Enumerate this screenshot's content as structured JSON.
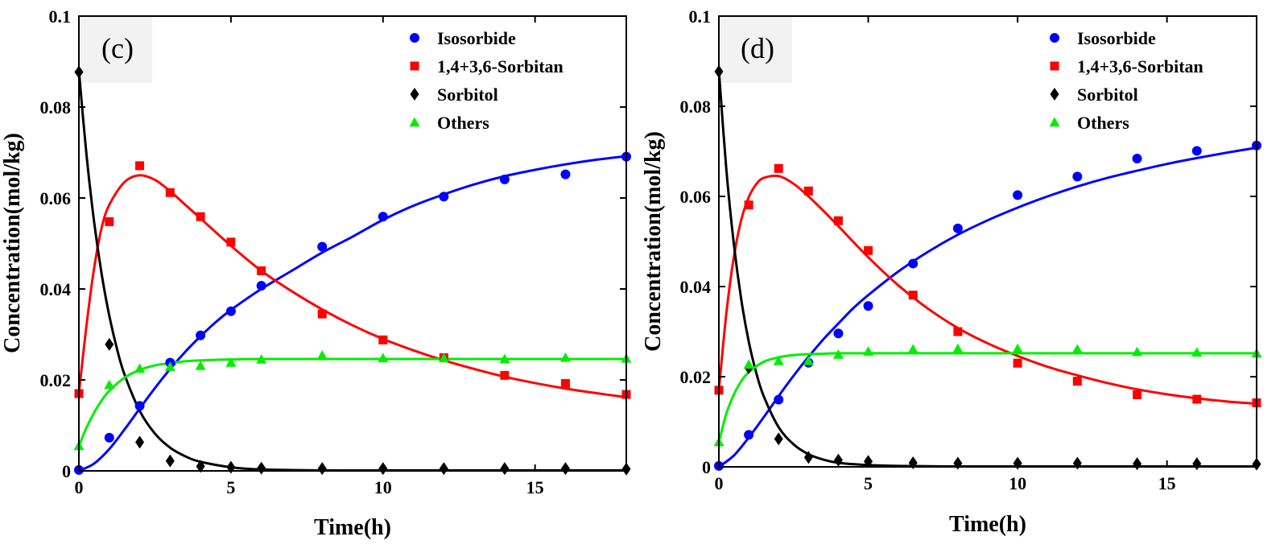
{
  "chart_data": [
    {
      "type": "scatter",
      "panel_label": "(c)",
      "xlabel": "Time(h)",
      "ylabel": "Concentration(mol/kg)",
      "xlim": [
        0,
        18
      ],
      "ylim": [
        0,
        0.1
      ],
      "x_ticks": [
        0,
        5,
        10,
        15
      ],
      "x_tick_labels": [
        "0",
        "5",
        "10",
        "15"
      ],
      "y_ticks": [
        0,
        0.02,
        0.04,
        0.06,
        0.08,
        0.1
      ],
      "y_tick_labels": [
        "0",
        "0.02",
        "0.04",
        "0.06",
        "0.08",
        "0.1"
      ],
      "legend_position": "top-right",
      "series": [
        {
          "name": "Isosorbide",
          "color": "#0000ff",
          "marker": "circle",
          "x": [
            0,
            1,
            2,
            3,
            4,
            5,
            6,
            8,
            10,
            12,
            14,
            16,
            18
          ],
          "y": [
            0.0002,
            0.0073,
            0.0143,
            0.0238,
            0.0298,
            0.0351,
            0.0407,
            0.0493,
            0.0559,
            0.0603,
            0.0641,
            0.0652,
            0.0691
          ],
          "fit_x": [
            0,
            0.5,
            1,
            1.5,
            2,
            2.5,
            3,
            3.5,
            4,
            4.5,
            5,
            6,
            7,
            8,
            9,
            10,
            11,
            12,
            13,
            14,
            15,
            16,
            17,
            18
          ],
          "fit_y": [
            0,
            0.0016,
            0.0048,
            0.0091,
            0.0137,
            0.0182,
            0.0224,
            0.0262,
            0.0296,
            0.0327,
            0.0354,
            0.04,
            0.044,
            0.048,
            0.0515,
            0.0552,
            0.0583,
            0.0608,
            0.063,
            0.0648,
            0.0662,
            0.0674,
            0.0684,
            0.0692
          ]
        },
        {
          "name": "1,4+3,6-Sorbitan",
          "color": "#ff0000",
          "marker": "square",
          "x": [
            0,
            1,
            2,
            3,
            4,
            5,
            6,
            8,
            10,
            12,
            14,
            16,
            18
          ],
          "y": [
            0.017,
            0.0548,
            0.0671,
            0.0612,
            0.0559,
            0.0503,
            0.044,
            0.0345,
            0.0288,
            0.0249,
            0.021,
            0.0192,
            0.0168
          ],
          "fit_x": [
            0,
            0.25,
            0.5,
            0.75,
            1,
            1.5,
            2,
            2.5,
            3,
            3.5,
            4,
            5,
            6,
            7,
            8,
            9,
            10,
            11,
            12,
            13,
            14,
            15,
            16,
            17,
            18
          ],
          "fit_y": [
            0.017,
            0.032,
            0.0445,
            0.0535,
            0.0585,
            0.0635,
            0.065,
            0.064,
            0.0615,
            0.0585,
            0.0555,
            0.0495,
            0.044,
            0.0395,
            0.0355,
            0.032,
            0.029,
            0.0265,
            0.0243,
            0.0224,
            0.0207,
            0.0193,
            0.0181,
            0.0171,
            0.0162
          ]
        },
        {
          "name": "Sorbitol",
          "color": "#000000",
          "marker": "diamond",
          "x": [
            0,
            1,
            2,
            3,
            4,
            5,
            6,
            8,
            10,
            12,
            14,
            16,
            18
          ],
          "y": [
            0.0877,
            0.0278,
            0.0063,
            0.0022,
            0.001,
            0.0008,
            0.0006,
            0.0005,
            0.0005,
            0.0005,
            0.0005,
            0.0005,
            0.0004
          ],
          "fit_x": [
            0,
            0.25,
            0.5,
            0.75,
            1,
            1.25,
            1.5,
            2,
            2.5,
            3,
            3.5,
            4,
            5,
            6,
            8,
            10,
            12,
            14,
            16,
            18
          ],
          "fit_y": [
            0.088,
            0.0695,
            0.0548,
            0.0432,
            0.0341,
            0.0269,
            0.0212,
            0.0132,
            0.0082,
            0.0051,
            0.0032,
            0.002,
            0.0008,
            0.0003,
            0.0001,
            0.0001,
            0.0001,
            0.0001,
            0.0001,
            0.0001
          ]
        },
        {
          "name": "Others",
          "color": "#00ee00",
          "marker": "triangle",
          "x": [
            0,
            1,
            2,
            3,
            4,
            5,
            6,
            8,
            10,
            12,
            14,
            16,
            18
          ],
          "y": [
            0.0055,
            0.0189,
            0.0225,
            0.0229,
            0.0231,
            0.0238,
            0.0245,
            0.0254,
            0.0248,
            0.0248,
            0.0246,
            0.0249,
            0.0247
          ],
          "fit_x": [
            0,
            0.25,
            0.5,
            0.75,
            1,
            1.5,
            2,
            2.5,
            3,
            3.5,
            4,
            5,
            6,
            8,
            10,
            12,
            14,
            16,
            18
          ],
          "fit_y": [
            0.0055,
            0.0095,
            0.0128,
            0.0155,
            0.0176,
            0.0205,
            0.0222,
            0.0232,
            0.0237,
            0.0241,
            0.0243,
            0.0245,
            0.0246,
            0.0246,
            0.0246,
            0.0246,
            0.0246,
            0.0246,
            0.0246
          ]
        }
      ]
    },
    {
      "type": "scatter",
      "panel_label": "(d)",
      "xlabel": "Time(h)",
      "ylabel": "Concentration(mol/kg)",
      "xlim": [
        0,
        18
      ],
      "ylim": [
        0,
        0.1
      ],
      "x_ticks": [
        0,
        5,
        10,
        15
      ],
      "x_tick_labels": [
        "0",
        "5",
        "10",
        "15"
      ],
      "y_ticks": [
        0,
        0.02,
        0.04,
        0.06,
        0.08,
        0.1
      ],
      "y_tick_labels": [
        "0",
        "0.02",
        "0.04",
        "0.06",
        "0.08",
        "0.1"
      ],
      "legend_position": "top-right",
      "series": [
        {
          "name": "Isosorbide",
          "color": "#0000ff",
          "marker": "circle",
          "x": [
            0,
            1,
            2,
            3,
            4,
            5,
            6.5,
            8,
            10,
            12,
            14,
            16,
            18
          ],
          "y": [
            0.0002,
            0.0071,
            0.0149,
            0.0231,
            0.0296,
            0.0357,
            0.0451,
            0.0529,
            0.0603,
            0.0644,
            0.0684,
            0.0701,
            0.0713
          ],
          "fit_x": [
            0,
            0.5,
            1,
            1.5,
            2,
            2.5,
            3,
            3.5,
            4,
            4.5,
            5,
            6,
            7,
            8,
            9,
            10,
            11,
            12,
            13,
            14,
            15,
            16,
            17,
            18
          ],
          "fit_y": [
            0,
            0.0025,
            0.0065,
            0.011,
            0.0157,
            0.0202,
            0.0244,
            0.0283,
            0.0318,
            0.0352,
            0.0381,
            0.0433,
            0.0477,
            0.0515,
            0.0547,
            0.0575,
            0.06,
            0.0622,
            0.0641,
            0.0657,
            0.0672,
            0.0685,
            0.0697,
            0.0708
          ]
        },
        {
          "name": "1,4+3,6-Sorbitan",
          "color": "#ff0000",
          "marker": "square",
          "x": [
            0,
            1,
            2,
            3,
            4,
            5,
            6.5,
            8,
            10,
            12,
            14,
            16,
            18
          ],
          "y": [
            0.017,
            0.0581,
            0.0662,
            0.0612,
            0.0546,
            0.048,
            0.0381,
            0.03,
            0.023,
            0.019,
            0.016,
            0.015,
            0.0142
          ],
          "fit_x": [
            0,
            0.25,
            0.5,
            0.75,
            1,
            1.25,
            1.5,
            2,
            2.5,
            3,
            3.5,
            4,
            5,
            6,
            7,
            8,
            9,
            10,
            11,
            12,
            13,
            14,
            15,
            16,
            17,
            18
          ],
          "fit_y": [
            0.017,
            0.034,
            0.0465,
            0.0548,
            0.0598,
            0.0627,
            0.0641,
            0.0645,
            0.0628,
            0.06,
            0.0568,
            0.0534,
            0.0465,
            0.0403,
            0.0351,
            0.0308,
            0.0274,
            0.0246,
            0.0222,
            0.0203,
            0.0186,
            0.0172,
            0.0161,
            0.0152,
            0.0145,
            0.014
          ]
        },
        {
          "name": "Sorbitol",
          "color": "#000000",
          "marker": "diamond",
          "x": [
            0,
            1,
            2,
            3,
            4,
            5,
            6.5,
            8,
            10,
            12,
            14,
            16,
            18
          ],
          "y": [
            0.0877,
            0.022,
            0.0062,
            0.0021,
            0.0015,
            0.0012,
            0.0009,
            0.0008,
            0.0008,
            0.0008,
            0.0007,
            0.0007,
            0.0006
          ],
          "fit_x": [
            0,
            0.25,
            0.5,
            0.75,
            1,
            1.25,
            1.5,
            2,
            2.5,
            3,
            3.5,
            4,
            5,
            6,
            8,
            10,
            12,
            14,
            16,
            18
          ],
          "fit_y": [
            0.088,
            0.066,
            0.0495,
            0.0371,
            0.0278,
            0.0209,
            0.0157,
            0.0088,
            0.005,
            0.0028,
            0.0016,
            0.0009,
            0.0004,
            0.0002,
            0.0001,
            0.0001,
            0.0001,
            0.0001,
            0.0001,
            0.0001
          ]
        },
        {
          "name": "Others",
          "color": "#00ee00",
          "marker": "triangle",
          "x": [
            0,
            1,
            2,
            3,
            4,
            5,
            6.5,
            8,
            10,
            12,
            14,
            16,
            18
          ],
          "y": [
            0.0055,
            0.0227,
            0.0235,
            0.0235,
            0.0249,
            0.0256,
            0.0261,
            0.0262,
            0.0262,
            0.0261,
            0.0255,
            0.0254,
            0.0252
          ],
          "fit_x": [
            0,
            0.25,
            0.5,
            0.75,
            1,
            1.5,
            2,
            2.5,
            3,
            3.5,
            4,
            5,
            6,
            8,
            10,
            12,
            14,
            16,
            18
          ],
          "fit_y": [
            0.0055,
            0.0118,
            0.016,
            0.019,
            0.021,
            0.0233,
            0.0243,
            0.0248,
            0.025,
            0.0251,
            0.0252,
            0.0252,
            0.0252,
            0.0252,
            0.0252,
            0.0252,
            0.0252,
            0.0252,
            0.0252
          ]
        }
      ]
    }
  ]
}
